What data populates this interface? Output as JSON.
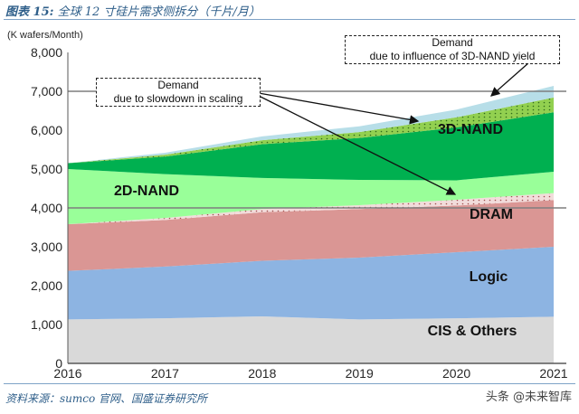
{
  "figure": {
    "label": "图表 15:",
    "title": "全球 12 寸硅片需求侧拆分（千片/月）"
  },
  "source_text": "资料来源：sumco 官网、国盛证券研究所",
  "watermark": "头条 @未来智库",
  "colors": {
    "cis": "#d9d9d9",
    "logic": "#8db4e2",
    "dram": "#da9694",
    "dram_slowdown": "#f2dcdb",
    "nand2d": "#99ff99",
    "nand3d": "#00b050",
    "nand3d_yield": "#92d050",
    "top": "#b7dee8",
    "refline": "#7f7f7f"
  },
  "chart_data": {
    "type": "area",
    "stacked": true,
    "unit_label": "(K wafers/Month)",
    "x": [
      2016,
      2017,
      2018,
      2019,
      2020,
      2021
    ],
    "x_tick_labels": [
      "2016",
      "2017",
      "2018",
      "2019",
      "2020",
      "2021"
    ],
    "ylim": [
      0,
      8000
    ],
    "y_ticks": [
      0,
      1000,
      2000,
      3000,
      4000,
      5000,
      6000,
      7000,
      8000
    ],
    "y_tick_labels": [
      "0",
      "1,000",
      "2,000",
      "3,000",
      "4,000",
      "5,000",
      "6,000",
      "7,000",
      "8,000"
    ],
    "reference_lines": [
      4000,
      7000
    ],
    "series": [
      {
        "name": "CIS & Others",
        "values": [
          1130,
          1160,
          1210,
          1130,
          1160,
          1200
        ]
      },
      {
        "name": "Logic",
        "values": [
          1250,
          1330,
          1430,
          1590,
          1700,
          1800
        ]
      },
      {
        "name": "DRAM",
        "values": [
          1200,
          1200,
          1250,
          1250,
          1200,
          1200
        ]
      },
      {
        "name": "DRAM demand (scaling slowdown)",
        "values": [
          0,
          50,
          80,
          100,
          150,
          180
        ]
      },
      {
        "name": "2D-NAND",
        "values": [
          1420,
          1130,
          800,
          650,
          500,
          550
        ]
      },
      {
        "name": "3D-NAND",
        "values": [
          150,
          450,
          870,
          1080,
          1360,
          1530
        ]
      },
      {
        "name": "3D-NAND demand (yield)",
        "values": [
          0,
          50,
          100,
          150,
          260,
          380
        ]
      },
      {
        "name": "Other (top)",
        "values": [
          0,
          50,
          100,
          150,
          200,
          300
        ]
      }
    ],
    "series_labels": {
      "cis": "CIS & Others",
      "logic": "Logic",
      "dram": "DRAM",
      "nand2d": "2D-NAND",
      "nand3d": "3D-NAND"
    },
    "annotations": [
      {
        "lines": [
          "Demand",
          "due to slowdown in scaling"
        ]
      },
      {
        "lines": [
          "Demand",
          "due to influence of 3D-NAND yield"
        ]
      }
    ]
  }
}
